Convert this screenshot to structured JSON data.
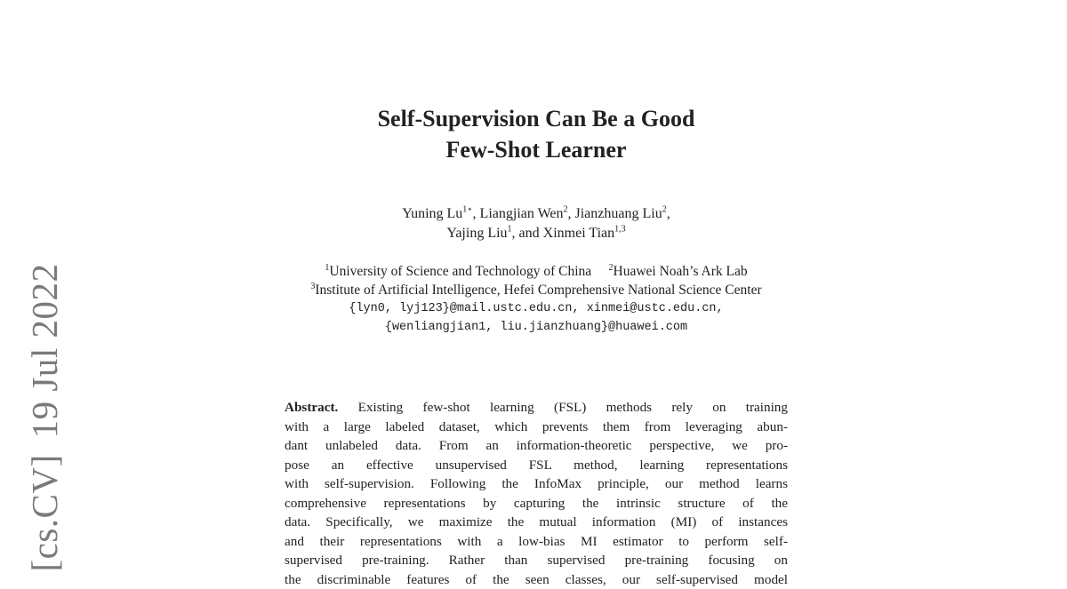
{
  "arxiv_stamp": {
    "category": "[cs.CV]",
    "date": "19 Jul 2022"
  },
  "title": {
    "line1": "Self-Supervision Can Be a Good",
    "line2": "Few-Shot Learner"
  },
  "authors": {
    "line1": [
      {
        "name": "Yuning Lu",
        "sup": "1⋆"
      },
      {
        "name": "Liangjian Wen",
        "sup": "2"
      },
      {
        "name": "Jianzhuang Liu",
        "sup": "2"
      }
    ],
    "line2": [
      {
        "name": "Yajing Liu",
        "sup": "1"
      },
      {
        "name": "Xinmei Tian",
        "sup": "1,3"
      }
    ],
    "conjunction": "and"
  },
  "affiliations": [
    {
      "sup": "1",
      "name": "University of Science and Technology of China"
    },
    {
      "sup": "2",
      "name": "Huawei Noah’s Ark Lab"
    },
    {
      "sup": "3",
      "name": "Institute of Artificial Intelligence, Hefei Comprehensive National Science Center"
    }
  ],
  "emails": {
    "line1": "{lyn0, lyj123}@mail.ustc.edu.cn, xinmei@ustc.edu.cn,",
    "line2": "{wenliangjian1, liu.jianzhuang}@huawei.com"
  },
  "abstract": {
    "heading": "Abstract.",
    "lines": [
      "Existing few-shot learning (FSL) methods rely on training",
      "with a large labeled dataset, which prevents them from leveraging abun-",
      "dant unlabeled data. From an information-theoretic perspective, we pro-",
      "pose an effective unsupervised FSL method, learning representations",
      "with self-supervision. Following the InfoMax principle, our method learns",
      "comprehensive representations by capturing the intrinsic structure of the",
      "data. Specifically, we maximize the mutual information (MI) of instances",
      "and their representations with a low-bias MI estimator to perform self-",
      "supervised pre-training. Rather than supervised pre-training focusing on",
      "the discriminable features of the seen classes, our self-supervised model"
    ]
  }
}
